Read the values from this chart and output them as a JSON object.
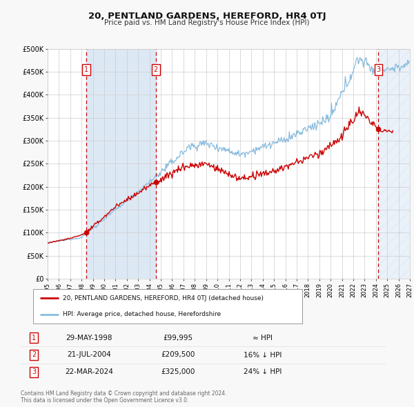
{
  "title": "20, PENTLAND GARDENS, HEREFORD, HR4 0TJ",
  "subtitle": "Price paid vs. HM Land Registry's House Price Index (HPI)",
  "xlim": [
    1995,
    2027
  ],
  "ylim": [
    0,
    500000
  ],
  "yticks": [
    0,
    50000,
    100000,
    150000,
    200000,
    250000,
    300000,
    350000,
    400000,
    450000,
    500000
  ],
  "ytick_labels": [
    "£0",
    "£50K",
    "£100K",
    "£150K",
    "£200K",
    "£250K",
    "£300K",
    "£350K",
    "£400K",
    "£450K",
    "£500K"
  ],
  "xticks": [
    1995,
    1996,
    1997,
    1998,
    1999,
    2000,
    2001,
    2002,
    2003,
    2004,
    2005,
    2006,
    2007,
    2008,
    2009,
    2010,
    2011,
    2012,
    2013,
    2014,
    2015,
    2016,
    2017,
    2018,
    2019,
    2020,
    2021,
    2022,
    2023,
    2024,
    2025,
    2026,
    2027
  ],
  "sale_color": "#cc0000",
  "hpi_color": "#88bbdd",
  "shade_color": "#dde8f5",
  "hatch_color": "#ccccdd",
  "legend_line1": "20, PENTLAND GARDENS, HEREFORD, HR4 0TJ (detached house)",
  "legend_line2": "HPI: Average price, detached house, Herefordshire",
  "transactions": [
    {
      "num": 1,
      "date": "29-MAY-1998",
      "price": 99995,
      "hpi_note": "≈ HPI",
      "year": 1998.41
    },
    {
      "num": 2,
      "date": "21-JUL-2004",
      "price": 209500,
      "hpi_note": "16% ↓ HPI",
      "year": 2004.55
    },
    {
      "num": 3,
      "date": "22-MAR-2024",
      "price": 325000,
      "hpi_note": "24% ↓ HPI",
      "year": 2024.22
    }
  ],
  "footer": "Contains HM Land Registry data © Crown copyright and database right 2024.\nThis data is licensed under the Open Government Licence v3.0.",
  "background_color": "#f8f8f8",
  "plot_bg_color": "#ffffff",
  "grid_color": "#cccccc"
}
